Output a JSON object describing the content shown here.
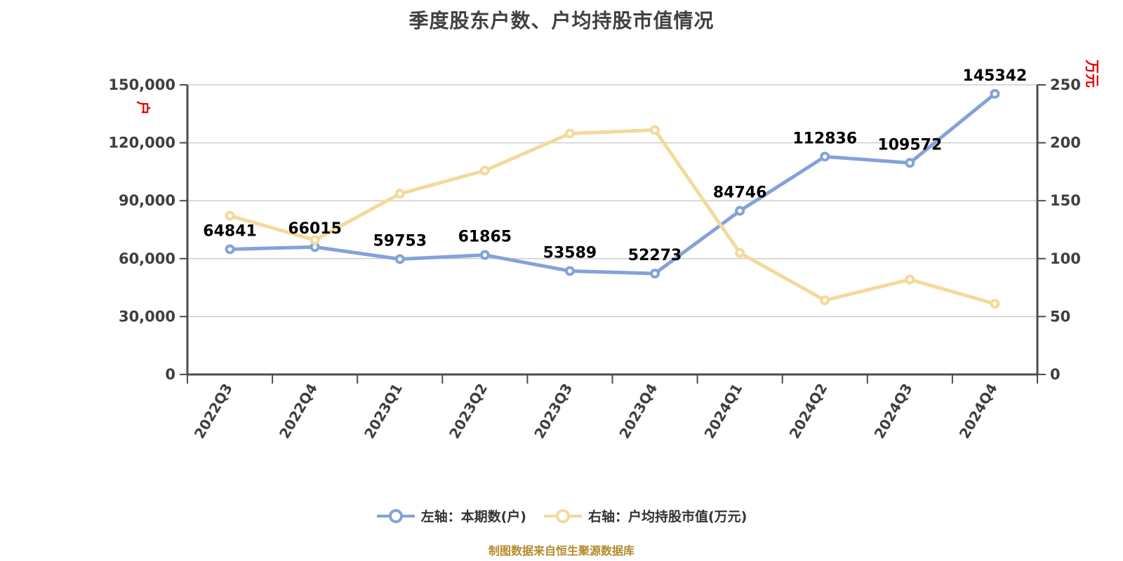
{
  "title": "季度股东户数、户均持股市值情况",
  "source_note": "制图数据来自恒生聚源数据库",
  "colors": {
    "series_left": "#84A2D8",
    "series_right": "#F4D99B",
    "grid": "#CDCDCD",
    "axis": "#4D4D4D",
    "tick_text": "#3E3E3E",
    "data_label": "#000000",
    "axis_unit_red": "#E60000",
    "title_text": "#404040",
    "caption_text": "#B5892B",
    "marker_fill": "#FFFFFF"
  },
  "left_axis": {
    "unit": "户",
    "min": 0,
    "max": 150000,
    "tick_labels": [
      "0",
      "30,000",
      "60,000",
      "90,000",
      "120,000",
      "150,000"
    ]
  },
  "right_axis": {
    "unit": "万元",
    "min": 0,
    "max": 250,
    "tick_labels": [
      "0",
      "50",
      "100",
      "150",
      "200",
      "250"
    ]
  },
  "legend": {
    "items": [
      {
        "label": "左轴：本期数(户)",
        "color": "#84A2D8"
      },
      {
        "label": "右轴：户均持股市值(万元)",
        "color": "#F4D99B"
      }
    ]
  },
  "chart_data": {
    "type": "line",
    "categories": [
      "2022Q3",
      "2022Q4",
      "2023Q1",
      "2023Q2",
      "2023Q3",
      "2023Q4",
      "2024Q1",
      "2024Q2",
      "2024Q3",
      "2024Q4"
    ],
    "series": [
      {
        "name": "左轴：本期数(户)",
        "axis": "left",
        "color": "#84A2D8",
        "values": [
          64841,
          66015,
          59753,
          61865,
          53589,
          52273,
          84746,
          112836,
          109572,
          145342
        ],
        "data_labels": [
          "64841",
          "66015",
          "59753",
          "61865",
          "53589",
          "52273",
          "84746",
          "112836",
          "109572",
          "145342"
        ]
      },
      {
        "name": "右轴：户均持股市值(万元)",
        "axis": "right",
        "color": "#F4D99B",
        "values": [
          137,
          116,
          156,
          176,
          208,
          211,
          105,
          64,
          82,
          61
        ],
        "data_labels": null
      }
    ],
    "left_ylim": [
      0,
      150000
    ],
    "right_ylim": [
      0,
      250
    ],
    "grid": true,
    "legend_position": "bottom",
    "x_label_rotation": -60
  }
}
